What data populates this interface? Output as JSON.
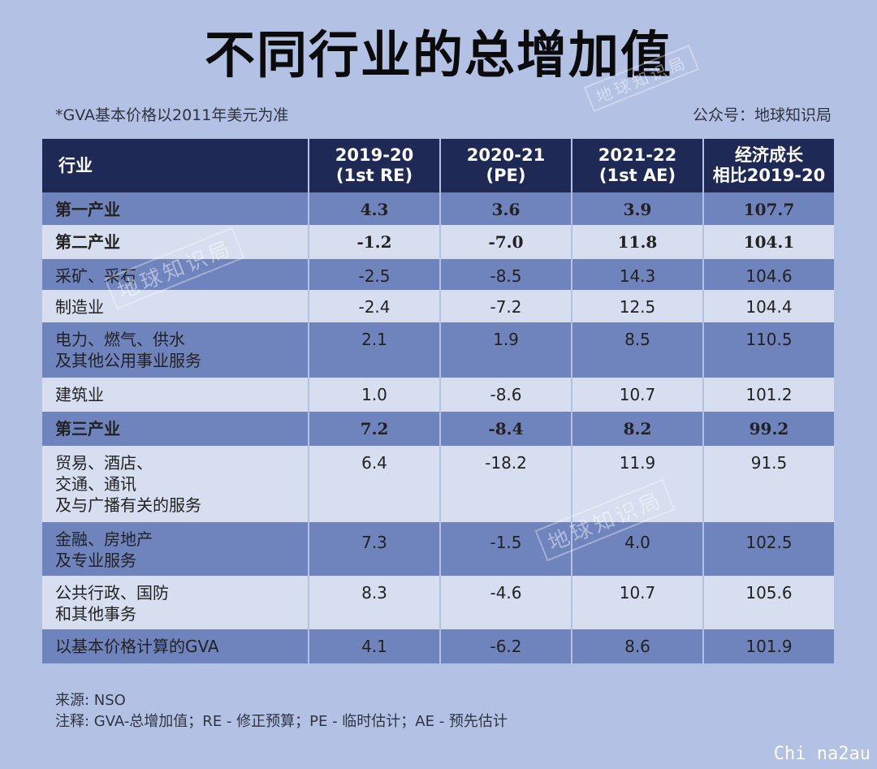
{
  "title": "不同行业的总增加值",
  "note_left": "*GVA基本价格以2011年美元为准",
  "note_right": "公众号：地球知识局",
  "headers": {
    "name": "行业",
    "c1_l1": "2019-20",
    "c1_l2": "(1st RE)",
    "c2_l1": "2020-21",
    "c2_l2": "(PE)",
    "c3_l1": "2021-22",
    "c3_l2": "(1st  AE)",
    "c4_l1": "经济成长",
    "c4_l2": "相比2019-20"
  },
  "rows": [
    {
      "l1": "第一产业",
      "l2": "",
      "l3": "",
      "v1": "4.3",
      "v2": "3.6",
      "v3": "3.9",
      "v4": "107.7"
    },
    {
      "l1": "第二产业",
      "l2": "",
      "l3": "",
      "v1": "-1.2",
      "v2": "-7.0",
      "v3": "11.8",
      "v4": "104.1"
    },
    {
      "l1": "采矿、采石",
      "l2": "",
      "l3": "",
      "v1": "-2.5",
      "v2": "-8.5",
      "v3": "14.3",
      "v4": "104.6"
    },
    {
      "l1": "制造业",
      "l2": "",
      "l3": "",
      "v1": "-2.4",
      "v2": "-7.2",
      "v3": "12.5",
      "v4": "104.4"
    },
    {
      "l1": "电力、燃气、供水",
      "l2": "及其他公用事业服务",
      "l3": "",
      "v1": "2.1",
      "v2": "1.9",
      "v3": "8.5",
      "v4": "110.5"
    },
    {
      "l1": "建筑业",
      "l2": "",
      "l3": "",
      "v1": "1.0",
      "v2": "-8.6",
      "v3": "10.7",
      "v4": "101.2"
    },
    {
      "l1": "第三产业",
      "l2": "",
      "l3": "",
      "v1": "7.2",
      "v2": "-8.4",
      "v3": "8.2",
      "v4": "99.2"
    },
    {
      "l1": "贸易、酒店、",
      "l2": "交通、通讯",
      "l3": "及与广播有关的服务",
      "v1": "6.4",
      "v2": "-18.2",
      "v3": "11.9",
      "v4": "91.5"
    },
    {
      "l1": "金融、房地产",
      "l2": "及专业服务",
      "l3": "",
      "v1": "7.3",
      "v2": "-1.5",
      "v3": "4.0",
      "v4": "102.5"
    },
    {
      "l1": "公共行政、国防",
      "l2": "和其他事务",
      "l3": "",
      "v1": "8.3",
      "v2": "-4.6",
      "v3": "10.7",
      "v4": "105.6"
    },
    {
      "l1": "以基本价格计算的GVA",
      "l2": "",
      "l3": "",
      "v1": "4.1",
      "v2": "-6.2",
      "v3": "8.6",
      "v4": "101.9"
    }
  ],
  "source": "来源: NSO",
  "footnote": "注释: GVA-总增加值；RE - 修正预算；PE - 临时估计；AE - 预先估计",
  "watermark_text": "地球知识局",
  "corner_logo": "Chi na2au"
}
